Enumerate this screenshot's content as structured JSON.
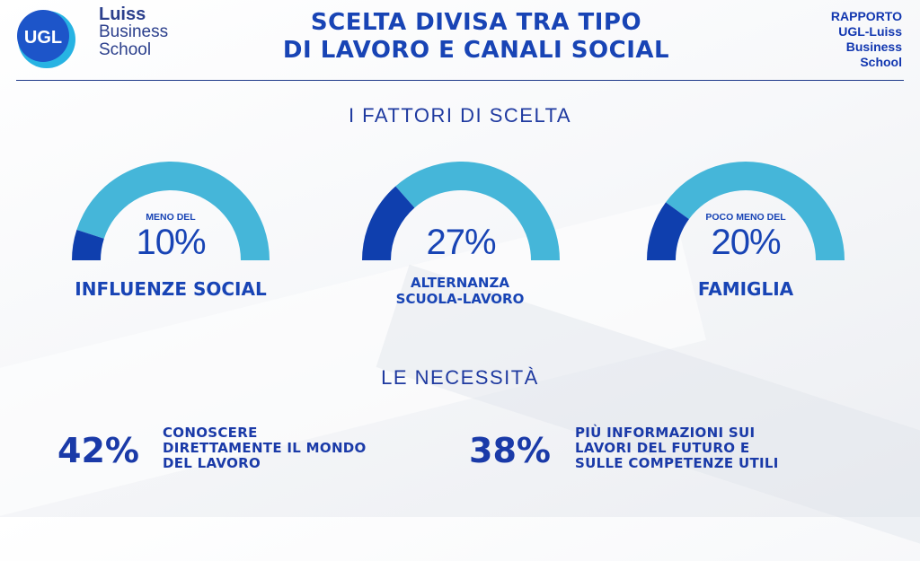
{
  "header": {
    "logo_badge": "UGL",
    "school_line1": "Luiss",
    "school_line2": "Business",
    "school_line3": "School",
    "title_line1": "SCELTA DIVISA TRA TIPO",
    "title_line2": "DI LAVORO E CANALI SOCIAL",
    "report_line1": "RAPPORTO",
    "report_line2": "UGL-Luiss",
    "report_line3": "Business",
    "report_line4": "School"
  },
  "section_factors": {
    "heading": "I FATTORI DI SCELTA",
    "gauges": [
      {
        "prefix": "MENO DEL",
        "value_text": "10%",
        "percent": 10,
        "label_line1": "INFLUENZE SOCIAL",
        "label_line2": ""
      },
      {
        "prefix": "",
        "value_text": "27%",
        "percent": 27,
        "label_line1": "ALTERNANZA",
        "label_line2": "SCUOLA-LAVORO"
      },
      {
        "prefix": "POCO MENO DEL",
        "value_text": "20%",
        "percent": 20,
        "label_line1": "FAMIGLIA",
        "label_line2": ""
      }
    ]
  },
  "section_needs": {
    "heading": "LE NECESSITÀ",
    "stats": [
      {
        "value": "42%",
        "line1": "CONOSCERE",
        "line2": "DIRETTAMENTE IL MONDO",
        "line3": "DEL LAVORO"
      },
      {
        "value": "38%",
        "line1": "PIÙ INFORMAZIONI SUI",
        "line2": "LAVORI DEL FUTURO E",
        "line3": "SULLE COMPETENZE UTILI"
      }
    ]
  },
  "colors": {
    "dark_blue": "#1844b5",
    "gauge_light": "#45b6d9",
    "gauge_dark": "#0f3fae"
  }
}
